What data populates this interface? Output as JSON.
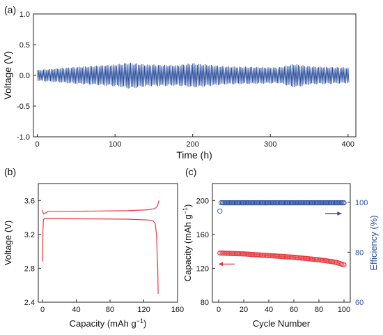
{
  "chart_data": [
    {
      "panel": "(a)",
      "type": "line",
      "title": "",
      "xlabel": "Time (h)",
      "ylabel": "Voltage (V)",
      "xlim": [
        -5,
        410
      ],
      "ylim": [
        -1.0,
        1.0
      ],
      "xticks": [
        0,
        100,
        200,
        300,
        400
      ],
      "yticks": [
        -1.0,
        -0.5,
        0.0,
        0.5,
        1.0
      ],
      "ytick_labels": [
        "-1.0",
        "-0.5",
        "0.0",
        "0.5",
        "1.0"
      ],
      "series": [
        {
          "color": "#2b4f9e",
          "style": "oscillation",
          "x_range": [
            0,
            400
          ],
          "cycles": 200,
          "envelope": {
            "time": [
              0,
              50,
              100,
              118,
              140,
              180,
              200,
              210,
              240,
              280,
              310,
              330,
              350,
              400
            ],
            "upper": [
              0.09,
              0.14,
              0.18,
              0.21,
              0.18,
              0.17,
              0.2,
              0.19,
              0.15,
              0.14,
              0.13,
              0.19,
              0.15,
              0.13
            ],
            "lower": [
              -0.09,
              -0.14,
              -0.18,
              -0.22,
              -0.18,
              -0.17,
              -0.2,
              -0.19,
              -0.15,
              -0.14,
              -0.13,
              -0.2,
              -0.15,
              -0.13
            ]
          }
        }
      ]
    },
    {
      "panel": "(b)",
      "type": "line",
      "title": "",
      "xlabel": "Capacity (mAh g",
      "xlabel_sup": "−1",
      "xlabel_end": ")",
      "ylabel": "Voltage (V)",
      "xlim": [
        -5,
        160
      ],
      "ylim": [
        2.4,
        3.8
      ],
      "xticks": [
        0,
        40,
        80,
        120,
        160
      ],
      "yticks": [
        2.4,
        2.8,
        3.2,
        3.6
      ],
      "ytick_labels": [
        "2.4",
        "2.8",
        "3.2",
        "3.6"
      ],
      "series": [
        {
          "role": "charge",
          "color": "#e8383d",
          "x": [
            0,
            0.5,
            1.5,
            3,
            6,
            20,
            60,
            100,
            125,
            133,
            136,
            138
          ],
          "y": [
            3.49,
            3.46,
            3.44,
            3.45,
            3.47,
            3.47,
            3.475,
            3.48,
            3.49,
            3.505,
            3.53,
            3.6
          ]
        },
        {
          "role": "discharge",
          "color": "#e8383d",
          "x": [
            0,
            0.5,
            1,
            2,
            5,
            20,
            60,
            100,
            125,
            131,
            133.5,
            135,
            136.5,
            137
          ],
          "y": [
            2.88,
            3.25,
            3.37,
            3.385,
            3.385,
            3.385,
            3.383,
            3.38,
            3.37,
            3.36,
            3.33,
            3.2,
            2.8,
            2.5
          ]
        }
      ]
    },
    {
      "panel": "(c)",
      "type": "scatter",
      "title": "",
      "xlabel": "Cycle Number",
      "ylabel": "Capacity (mAh g",
      "ylabel_sup": "−1",
      "ylabel_end": ")",
      "y2label": "Efficiency (%)",
      "xlim": [
        -5,
        105
      ],
      "ylim": [
        80,
        220
      ],
      "y2lim": [
        60,
        107.5
      ],
      "xticks": [
        0,
        20,
        40,
        60,
        80,
        100
      ],
      "yticks": [
        80,
        120,
        160,
        200
      ],
      "y2ticks": [
        60,
        80,
        100
      ],
      "series": [
        {
          "role": "capacity",
          "axis": "left",
          "color": "#e8383d",
          "marker": "open-circle",
          "x_start": 1,
          "x_end": 100,
          "values_at": {
            "x": [
              1,
              10,
              20,
              30,
              40,
              50,
              60,
              70,
              80,
              90,
              95,
              100
            ],
            "y": [
              138,
              137.5,
              137,
              136,
              135,
              134,
              133,
              131.5,
              130,
              128,
              126.5,
              124
            ]
          }
        },
        {
          "role": "efficiency",
          "axis": "right",
          "color": "#2b4f9e",
          "marker": "open-circle",
          "x_start": 1,
          "x_end": 100,
          "first_value": 96.5,
          "steady_value": 99.8
        }
      ],
      "annotations": [
        {
          "type": "arrow",
          "color": "#e8383d",
          "direction": "left",
          "at": {
            "x": 13,
            "y": 125
          },
          "length_x": 13
        },
        {
          "type": "arrow",
          "color": "#2b4f9e",
          "direction": "right",
          "at": {
            "x": 85,
            "y2": 95.5
          },
          "length_x": 13
        }
      ]
    }
  ]
}
